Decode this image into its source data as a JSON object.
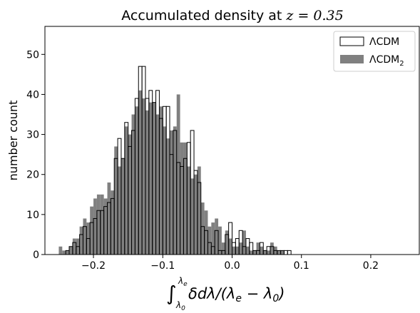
{
  "chart_data": {
    "type": "histogram",
    "title_prefix": "Accumulated density at ",
    "title_math": "z = 0.35",
    "xlabel": "∫_{λ0}^{λe} δ dλ/(λe − λ0)",
    "ylabel": "number count",
    "xlim": [
      -0.27,
      0.27
    ],
    "ylim": [
      0,
      57
    ],
    "bin_edges_start": -0.25,
    "bin_width": 0.005,
    "x_ticks": [
      {
        "value": -0.2,
        "label": "−0.2"
      },
      {
        "value": -0.1,
        "label": "−0.1"
      },
      {
        "value": 0.0,
        "label": "0.0"
      },
      {
        "value": 0.1,
        "label": "0.1"
      },
      {
        "value": 0.2,
        "label": "0.2"
      }
    ],
    "y_ticks": [
      {
        "value": 0,
        "label": "0"
      },
      {
        "value": 10,
        "label": "10"
      },
      {
        "value": 20,
        "label": "20"
      },
      {
        "value": 30,
        "label": "30"
      },
      {
        "value": 40,
        "label": "40"
      },
      {
        "value": 50,
        "label": "50"
      }
    ],
    "legend_position": "upper right",
    "series": [
      {
        "name": "ΛCDM",
        "style": "step-outline",
        "color": "#000000",
        "counts": [
          0,
          0,
          1,
          2,
          3,
          2,
          5,
          7,
          4,
          8,
          9,
          11,
          11,
          12,
          13,
          14,
          24,
          29,
          24,
          33,
          27,
          31,
          39,
          47,
          47,
          39,
          41,
          38,
          41,
          34,
          37,
          37,
          25,
          31,
          23,
          22,
          24,
          28,
          31,
          21,
          18,
          7,
          6,
          3,
          2,
          6,
          1,
          1,
          5,
          8,
          3,
          4,
          6,
          2,
          4,
          3,
          1,
          1,
          3,
          1,
          2,
          2,
          1,
          1,
          1,
          1,
          1,
          0
        ],
        "sparse_note": ""
      },
      {
        "name": "ΛCDM₂",
        "name_base": "ΛCDM",
        "name_sub": "2",
        "style": "filled",
        "color": "#808080",
        "counts": [
          2,
          1,
          1,
          2,
          4,
          4,
          7,
          9,
          8,
          12,
          14,
          15,
          15,
          14,
          18,
          16,
          27,
          22,
          24,
          32,
          30,
          35,
          37,
          41,
          39,
          36,
          38,
          38,
          35,
          37,
          32,
          29,
          31,
          32,
          40,
          28,
          28,
          22,
          19,
          20,
          22,
          13,
          11,
          7,
          8,
          9,
          7,
          3,
          6,
          4,
          2,
          2,
          3,
          6,
          2,
          1,
          1,
          3,
          2,
          1,
          1,
          3,
          2,
          1,
          1,
          0,
          0,
          0
        ]
      }
    ]
  }
}
